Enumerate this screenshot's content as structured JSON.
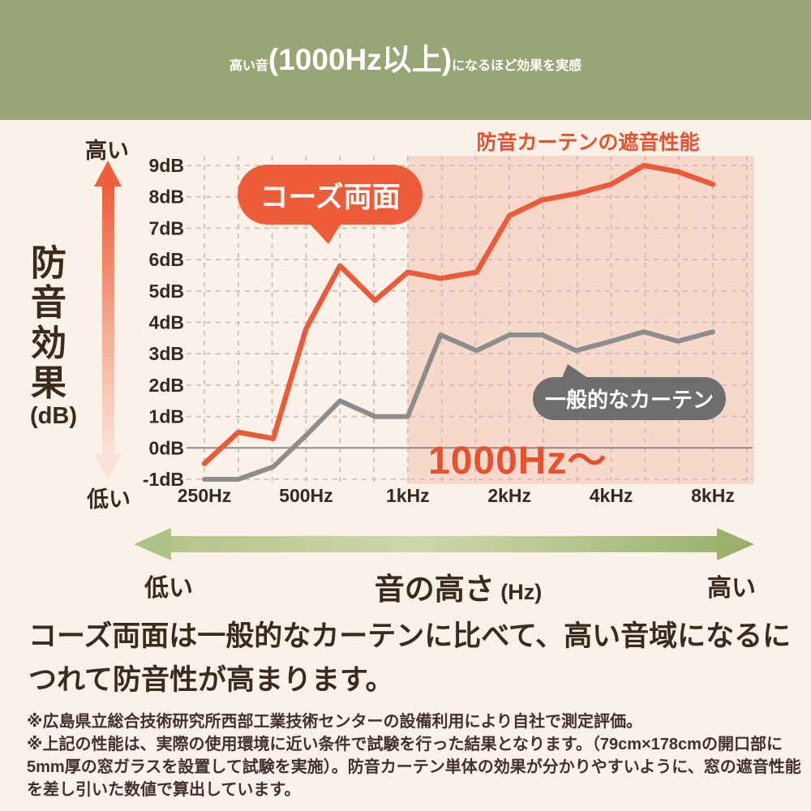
{
  "banner": {
    "title_big1": "高い音",
    "title_small": "(1000Hz以上)",
    "title_big2": "になるほど効果を実感"
  },
  "chart": {
    "title": "防音カーテンの遮音性能",
    "y_axis": {
      "title": "防音効果",
      "unit": "(dB)",
      "high": "高い",
      "low": "低い"
    },
    "x_axis": {
      "title": "音の高さ",
      "unit": "(Hz)",
      "low": "低い",
      "high": "高い"
    },
    "callouts": {
      "series_main": "コーズ両面",
      "series_generic": "一般的なカーテン",
      "highlight": "1000Hz～"
    }
  },
  "chart_data": {
    "type": "line",
    "title": "防音カーテンの遮音性能",
    "x_unit": "Hz",
    "x_scale": "log",
    "x": [
      250,
      315,
      400,
      500,
      630,
      800,
      1000,
      1250,
      1600,
      2000,
      2500,
      3150,
      4000,
      5000,
      6300,
      8000
    ],
    "x_ticks": [
      {
        "f": 250,
        "label": "250Hz"
      },
      {
        "f": 500,
        "label": "500Hz"
      },
      {
        "f": 1000,
        "label": "1kHz"
      },
      {
        "f": 2000,
        "label": "2kHz"
      },
      {
        "f": 4000,
        "label": "4kHz"
      },
      {
        "f": 8000,
        "label": "8kHz"
      }
    ],
    "y_ticks": [
      "9dB",
      "8dB",
      "7dB",
      "6dB",
      "5dB",
      "4dB",
      "3dB",
      "2dB",
      "1dB",
      "0dB",
      "-1dB"
    ],
    "ylim": [
      -1,
      9
    ],
    "ylabel": "防音効果 (dB)",
    "xlabel": "音の高さ (Hz)",
    "grid": "dashed 1/3-octave vertical and 1dB horizontal lines, solid line at 0dB",
    "series": [
      {
        "name": "コーズ両面",
        "color": "#e95b39",
        "values": [
          -0.5,
          0.5,
          0.3,
          3.8,
          5.8,
          4.7,
          5.6,
          5.4,
          5.6,
          7.4,
          7.9,
          8.1,
          8.4,
          9.0,
          8.8,
          8.4
        ]
      },
      {
        "name": "一般的なカーテン",
        "color": "#8d8d8d",
        "values": [
          -1.0,
          -1.0,
          -0.6,
          0.4,
          1.5,
          1.0,
          1.0,
          3.6,
          3.1,
          3.6,
          3.6,
          3.1,
          3.4,
          3.7,
          3.4,
          3.7
        ]
      }
    ],
    "highlight_region": {
      "label": "1000Hz～",
      "from_hz": 1000,
      "color": "#f7d9cc"
    }
  },
  "body": {
    "text": "コーズ両面は一般的なカーテンに比べて、高い音域になるにつれて防音性が高まります。"
  },
  "footnotes": [
    "※広島県立総合技術研究所西部工業技術センターの設備利用により自社で測定評価。",
    "※上記の性能は、実際の使用環境に近い条件で試験を行った結果となります。（79cm×178cmの開口部に5mm厚の窓ガラスを設置して試験を実施）。防音カーテン単体の効果が分かりやすいように、窓の遮音性能を差し引いた数値で算出しています。"
  ],
  "colors": {
    "banner_bg": "#9aa575",
    "page_bg": "#faf1e9",
    "accent_orange": "#e95b39",
    "highlight_pink": "#f7d9cc",
    "generic_gray": "#8d8d8d",
    "text_dark": "#3a2a1f",
    "arrow_green": "#b0c187"
  }
}
